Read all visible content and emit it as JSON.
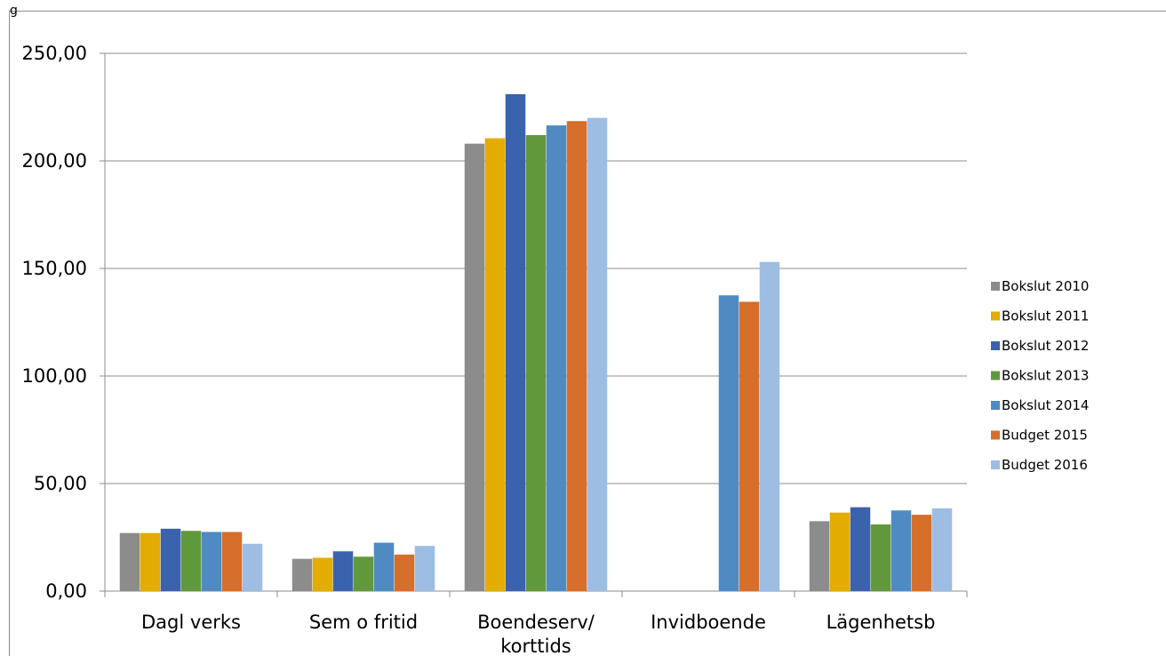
{
  "corner_text": "g",
  "chart_data": {
    "type": "bar",
    "title": "",
    "xlabel": "",
    "ylabel": "",
    "categories": [
      [
        "Dagl verks"
      ],
      [
        "Sem o fritid"
      ],
      [
        "Boendeserv/",
        "korttids"
      ],
      [
        "Invidboende"
      ],
      [
        "Lägenhetsb"
      ]
    ],
    "ylim": [
      0,
      250
    ],
    "yticks": [
      0,
      50,
      100,
      150,
      200,
      250
    ],
    "ytick_labels": [
      "0,00",
      "50,00",
      "100,00",
      "150,00",
      "200,00",
      "250,00"
    ],
    "grid": true,
    "legend_position": "right",
    "series": [
      {
        "name": "Bokslut 2010",
        "color": "#8c8c8c",
        "values": [
          27,
          15,
          208,
          0,
          32.5
        ]
      },
      {
        "name": "Bokslut 2011",
        "color": "#e3ac00",
        "values": [
          27,
          15.5,
          210.5,
          0,
          36.5
        ]
      },
      {
        "name": "Bokslut 2012",
        "color": "#3b62ad",
        "values": [
          29,
          18.5,
          231,
          0,
          39
        ]
      },
      {
        "name": "Bokslut 2013",
        "color": "#61983c",
        "values": [
          28,
          16,
          212,
          0,
          31
        ]
      },
      {
        "name": "Bokslut 2014",
        "color": "#4f8bc2",
        "values": [
          27.5,
          22.5,
          216.5,
          137.5,
          37.5
        ]
      },
      {
        "name": "Budget 2015",
        "color": "#d66f2c",
        "values": [
          27.5,
          17,
          218.5,
          134.5,
          35.5
        ]
      },
      {
        "name": "Budget 2016",
        "color": "#9dbde3",
        "values": [
          22,
          21,
          220,
          153,
          38.5
        ]
      }
    ]
  }
}
